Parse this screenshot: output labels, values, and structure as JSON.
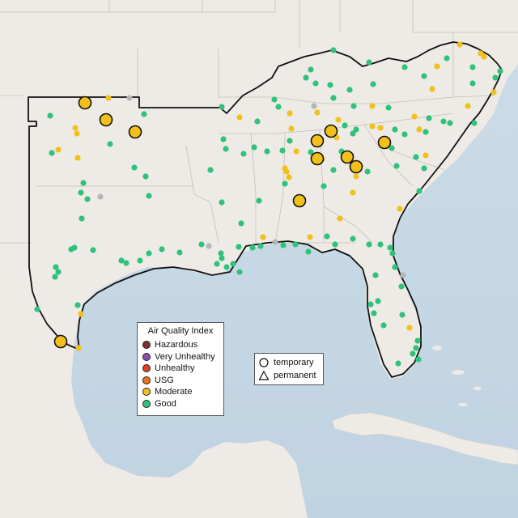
{
  "legend": {
    "title": "Air Quality Index",
    "categories": [
      {
        "label": "Hazardous",
        "color": "#7e2e2e"
      },
      {
        "label": "Very Unhealthy",
        "color": "#8e4fa8"
      },
      {
        "label": "Unhealthy",
        "color": "#e0402a"
      },
      {
        "label": "USG",
        "color": "#e6761a"
      },
      {
        "label": "Moderate",
        "color": "#f2c01a"
      },
      {
        "label": "Good",
        "color": "#2fc27a"
      }
    ]
  },
  "shape_legend": {
    "temporary_label": "temporary",
    "permanent_label": "permanent"
  },
  "colors": {
    "land": "#efece8",
    "water": "#c5d6e4",
    "border": "#111111",
    "state_lines": "#bdbdbd",
    "no_data": "#b5b5b5"
  }
}
